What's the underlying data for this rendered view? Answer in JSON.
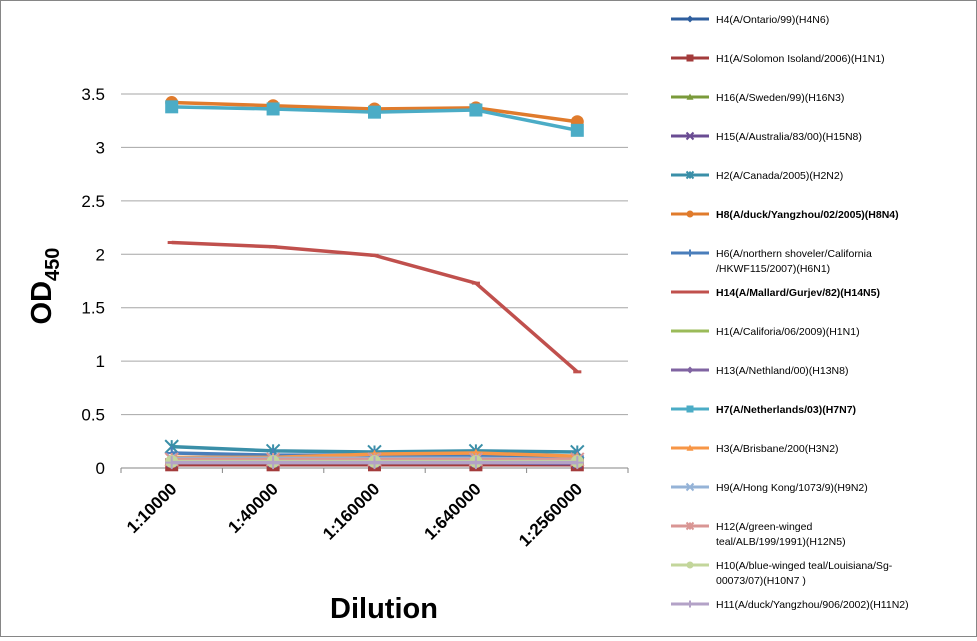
{
  "chart_data": {
    "type": "line",
    "title": "",
    "xlabel": "Dilution",
    "ylabel": "OD",
    "ylabel_sub": "450",
    "categories": [
      "1:10000",
      "1:40000",
      "1:160000",
      "1:640000",
      "1:2560000"
    ],
    "ylim": [
      0,
      3.5
    ],
    "yticks": [
      "0",
      "0.5",
      "1",
      "1.5",
      "2",
      "2.5",
      "3",
      "3.5"
    ],
    "grid": true,
    "legend_position": "right",
    "series": [
      {
        "name": "H4(A/Ontario/99)(H4N6)",
        "color": "#2E5E9E",
        "marker": "diamond",
        "bold": false,
        "values": [
          0.08,
          0.07,
          0.07,
          0.07,
          0.06
        ]
      },
      {
        "name": "H1(A/Solomon Isoland/2006)(H1N1)",
        "color": "#A33B3B",
        "marker": "square",
        "bold": false,
        "values": [
          0.03,
          0.03,
          0.03,
          0.03,
          0.03
        ]
      },
      {
        "name": "H16(A/Sweden/99)(H16N3)",
        "color": "#7A9A3A",
        "marker": "triangle",
        "bold": false,
        "values": [
          0.06,
          0.06,
          0.05,
          0.05,
          0.05
        ]
      },
      {
        "name": "H15(A/Australia/83/00)(H15N8)",
        "color": "#6A4C93",
        "marker": "x",
        "bold": false,
        "values": [
          0.05,
          0.05,
          0.05,
          0.05,
          0.04
        ]
      },
      {
        "name": "H2(A/Canada/2005)(H2N2)",
        "color": "#3A8FA8",
        "marker": "star",
        "bold": false,
        "values": [
          0.2,
          0.16,
          0.15,
          0.16,
          0.15
        ]
      },
      {
        "name": "H8(A/duck/Yangzhou/02/2005)(H8N4)",
        "color": "#E07B2C",
        "marker": "circle",
        "bold": true,
        "values": [
          3.42,
          3.39,
          3.36,
          3.37,
          3.24
        ]
      },
      {
        "name": "H6(A/northern shoveler/California/HKWF115/2007)(H6N1)",
        "color": "#4A7EBB",
        "marker": "plus",
        "bold": false,
        "values": [
          0.14,
          0.12,
          0.12,
          0.12,
          0.11
        ]
      },
      {
        "name": "H14(A/Mallard/Gurjev/82)(H14N5)",
        "color": "#C0504D",
        "marker": "dash",
        "bold": true,
        "values": [
          2.11,
          2.07,
          1.99,
          1.73,
          0.9
        ]
      },
      {
        "name": "H1(A/Califoria/06/2009)(H1N1)",
        "color": "#9BBB59",
        "marker": "dash",
        "bold": false,
        "values": [
          0.07,
          0.07,
          0.07,
          0.07,
          0.07
        ]
      },
      {
        "name": "H13(A/Nethland/00)(H13N8)",
        "color": "#8064A2",
        "marker": "diamond",
        "bold": false,
        "values": [
          0.06,
          0.06,
          0.06,
          0.06,
          0.06
        ]
      },
      {
        "name": "H7(A/Netherlands/03)(H7N7)",
        "color": "#4BACC6",
        "marker": "square",
        "bold": true,
        "values": [
          3.38,
          3.36,
          3.33,
          3.35,
          3.16
        ]
      },
      {
        "name": "H3(A/Brisbane/200(H3N2)",
        "color": "#F79646",
        "marker": "triangle",
        "bold": false,
        "values": [
          0.1,
          0.1,
          0.13,
          0.14,
          0.11
        ]
      },
      {
        "name": "H9(A/Hong Kong/1073/9)(H9N2)",
        "color": "#95B3D7",
        "marker": "x",
        "bold": false,
        "values": [
          0.09,
          0.09,
          0.09,
          0.09,
          0.08
        ]
      },
      {
        "name": "H12(A/green-winged teal/ALB/199/1991)(H12N5)",
        "color": "#D99694",
        "marker": "star",
        "bold": false,
        "values": [
          0.08,
          0.08,
          0.08,
          0.08,
          0.08
        ]
      },
      {
        "name": "H10(A/blue-winged teal/Louisiana/Sg-00073/07)(H10N7 )",
        "color": "#C3D69B",
        "marker": "circle",
        "bold": false,
        "values": [
          0.06,
          0.06,
          0.06,
          0.06,
          0.06
        ]
      },
      {
        "name": "H11(A/duck/Yangzhou/906/2002)(H11N2)",
        "color": "#B3A2C7",
        "marker": "plus",
        "bold": false,
        "values": [
          0.05,
          0.05,
          0.05,
          0.05,
          0.05
        ]
      }
    ]
  }
}
